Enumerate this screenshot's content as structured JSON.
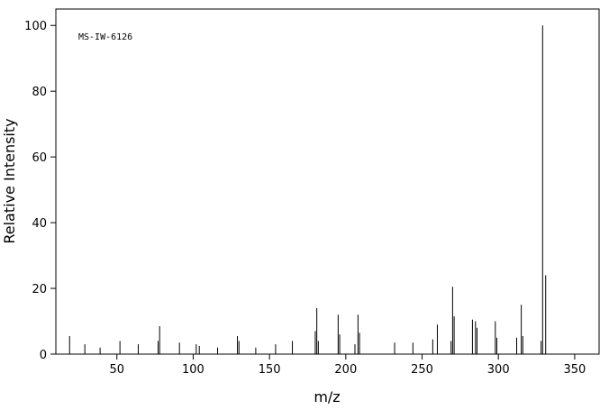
{
  "chart_data": {
    "type": "stem",
    "annotation": "MS-IW-6126",
    "xlabel": "m/z",
    "ylabel": "Relative Intensity",
    "x": [
      19,
      29,
      39,
      52,
      64,
      77,
      78,
      91,
      102,
      104,
      116,
      129,
      130,
      141,
      154,
      165,
      180,
      181,
      182,
      195,
      196,
      206,
      208,
      209,
      232,
      244,
      257,
      260,
      269,
      270,
      271,
      283,
      285,
      286,
      298,
      299,
      312,
      315,
      316,
      328,
      329,
      331
    ],
    "values": [
      5.5,
      3,
      2,
      4,
      3,
      4,
      8.5,
      3.5,
      3,
      2.5,
      2,
      5.5,
      4,
      2,
      3,
      4,
      7,
      14,
      4,
      12,
      6,
      3,
      12,
      6.5,
      3.5,
      3.5,
      4.5,
      9,
      4,
      20.5,
      11.5,
      10.5,
      10,
      8,
      10,
      5,
      5,
      15,
      5.5,
      4,
      100,
      24
    ],
    "color": "#000000",
    "xlim": [
      10,
      366
    ],
    "ylim": [
      0,
      105
    ],
    "xticks": [
      50,
      100,
      150,
      200,
      250,
      300,
      350
    ],
    "yticks": [
      0,
      20,
      40,
      60,
      80,
      100
    ]
  }
}
